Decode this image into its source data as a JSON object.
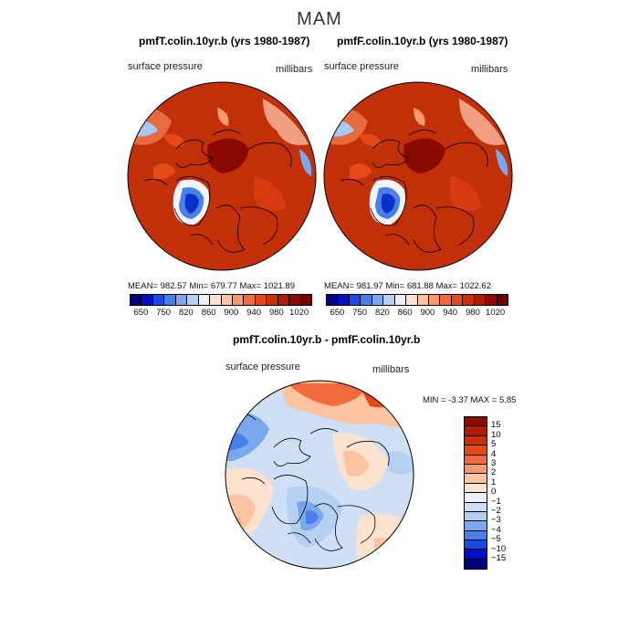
{
  "figure_title": "MAM",
  "panels": {
    "left": {
      "title": "pmfT.colin.10yr.b (yrs 1980-1987)",
      "left_label": "surface pressure",
      "right_label": "millibars",
      "stats": "MEAN= 982.57    Min= 679.77    Max= 1021.89"
    },
    "right": {
      "title": "pmfF.colin.10yr.b (yrs 1980-1987)",
      "left_label": "surface pressure",
      "right_label": "millibars",
      "stats": "MEAN= 981.97    Min= 681.88    Max= 1022.62"
    },
    "diff": {
      "title": "pmfT.colin.10yr.b - pmfF.colin.10yr.b",
      "left_label": "surface pressure",
      "right_label": "millibars",
      "stats": "MIN =   -3.37 MAX =    5.85"
    }
  },
  "colorbar_abs": {
    "labels": [
      "650",
      "750",
      "820",
      "860",
      "900",
      "940",
      "980",
      "1020"
    ],
    "colors": [
      "#000080",
      "#0010c0",
      "#1a4ae6",
      "#4a7ee8",
      "#7aa8ee",
      "#b6d0f4",
      "#eaf1fb",
      "#fde3cf",
      "#fbc3a0",
      "#f89a6e",
      "#f26a3e",
      "#e44a18",
      "#cc2e08",
      "#b01c02",
      "#8c0a00",
      "#700000"
    ]
  },
  "colorbar_diff": {
    "labels": [
      "15",
      "10",
      "5",
      "4",
      "3",
      "2",
      "1",
      "0",
      "−1",
      "−2",
      "−3",
      "−4",
      "−5",
      "−10",
      "−15"
    ],
    "colors": [
      "#8c0a00",
      "#b01c02",
      "#cc2e08",
      "#e44a18",
      "#f26a3e",
      "#f89a6e",
      "#fbc3a0",
      "#fde3cf",
      "#eaf1fb",
      "#cfe0f6",
      "#b6d0f4",
      "#7aa8ee",
      "#4a7ee8",
      "#1a4ae6",
      "#0010c0",
      "#000080"
    ]
  }
}
